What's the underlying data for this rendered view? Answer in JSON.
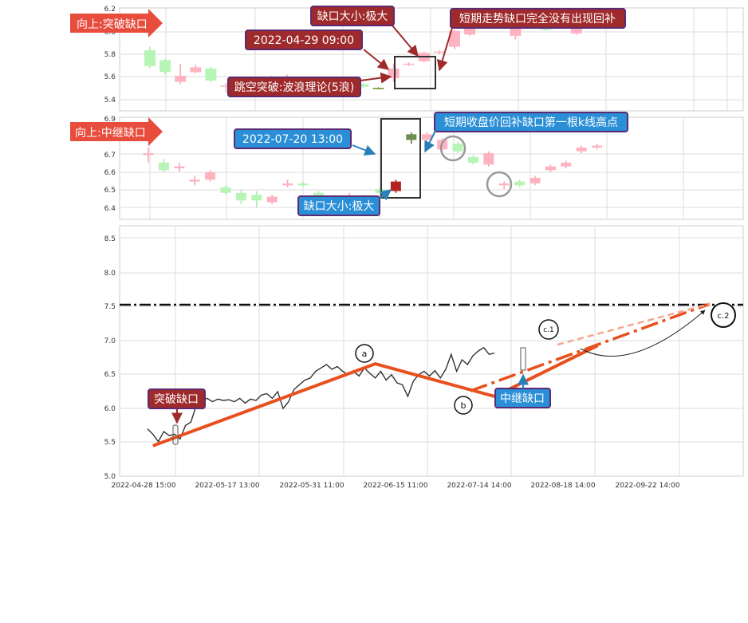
{
  "chart_data": [
    {
      "type": "candlestick",
      "panel": "top",
      "ylim": [
        5.35,
        6.2
      ],
      "yticks": [
        "6.2",
        "6.0",
        "5.8",
        "5.6",
        "5.4"
      ],
      "candles": [
        [
          5.72,
          5.85,
          5.7,
          5.88,
          "up"
        ],
        [
          5.67,
          5.77,
          5.65,
          5.78,
          "up"
        ],
        [
          5.64,
          5.59,
          5.57,
          5.74,
          "down"
        ],
        [
          5.67,
          5.71,
          5.66,
          5.73,
          "down"
        ],
        [
          5.6,
          5.7,
          5.59,
          5.71,
          "up"
        ],
        [
          5.55,
          5.56,
          5.5,
          5.58,
          "down"
        ],
        [
          5.53,
          5.54,
          5.49,
          5.56,
          "down"
        ],
        [
          5.58,
          5.56,
          5.55,
          5.6,
          "up"
        ],
        [
          5.6,
          5.62,
          5.59,
          5.64,
          "down"
        ],
        [
          5.62,
          5.63,
          5.61,
          5.65,
          "down"
        ],
        [
          5.61,
          5.59,
          5.57,
          5.62,
          "up"
        ],
        [
          5.6,
          5.61,
          5.59,
          5.62,
          "down"
        ],
        [
          5.57,
          5.56,
          5.55,
          5.58,
          "up"
        ],
        [
          5.54,
          5.58,
          5.53,
          5.59,
          "up"
        ],
        [
          5.55,
          5.57,
          5.54,
          5.58,
          "up"
        ],
        [
          5.54,
          5.54,
          5.53,
          5.545,
          "flat"
        ],
        [
          5.62,
          5.7,
          5.59,
          5.74,
          "down"
        ],
        [
          5.73,
          5.74,
          5.72,
          5.75,
          "down"
        ],
        [
          5.76,
          5.83,
          5.75,
          5.84,
          "down"
        ],
        [
          5.83,
          5.84,
          5.82,
          5.85,
          "down"
        ],
        [
          5.88,
          6.01,
          5.86,
          6.02,
          "down"
        ],
        [
          5.98,
          6.05,
          5.97,
          6.06,
          "down"
        ],
        [
          6.08,
          6.1,
          6.05,
          6.12,
          "down"
        ],
        [
          6.11,
          6.12,
          6.1,
          6.13,
          "down"
        ],
        [
          6.04,
          5.97,
          5.94,
          6.07,
          "down"
        ],
        [
          6.05,
          6.07,
          6.04,
          6.08,
          "down"
        ],
        [
          6.02,
          6.04,
          6.01,
          6.05,
          "up"
        ],
        [
          6.04,
          6.05,
          6.03,
          6.06,
          "up"
        ],
        [
          6.06,
          5.99,
          5.98,
          6.07,
          "down"
        ]
      ],
      "labels": {
        "pattern": "向上:突破缺口",
        "gap_size": "缺口大小:极大",
        "datetime": "2022-04-29 09:00",
        "no_fill": "短期走势缺口完全没有出现回补",
        "breakout": "跳空突破:波浪理论(5浪)"
      }
    },
    {
      "type": "candlestick",
      "panel": "middle",
      "ylim": [
        6.36,
        6.9
      ],
      "yticks": [
        "6.9",
        "6.7",
        "6.6",
        "6.5",
        "6.4"
      ],
      "candles": [
        [
          6.7,
          6.71,
          6.66,
          6.74,
          "down"
        ],
        [
          6.62,
          6.66,
          6.61,
          6.68,
          "up"
        ],
        [
          6.64,
          6.63,
          6.61,
          6.66,
          "down"
        ],
        [
          6.56,
          6.57,
          6.54,
          6.59,
          "down"
        ],
        [
          6.57,
          6.61,
          6.56,
          6.62,
          "down"
        ],
        [
          6.5,
          6.53,
          6.49,
          6.54,
          "up"
        ],
        [
          6.46,
          6.5,
          6.44,
          6.52,
          "up"
        ],
        [
          6.46,
          6.49,
          6.42,
          6.51,
          "up"
        ],
        [
          6.45,
          6.48,
          6.44,
          6.49,
          "down"
        ],
        [
          6.54,
          6.55,
          6.53,
          6.57,
          "down"
        ],
        [
          6.54,
          6.55,
          6.53,
          6.56,
          "up"
        ],
        [
          6.47,
          6.5,
          6.46,
          6.51,
          "up"
        ],
        [
          6.47,
          6.48,
          6.46,
          6.49,
          "down"
        ],
        [
          6.47,
          6.48,
          6.46,
          6.5,
          "down"
        ],
        [
          6.48,
          6.47,
          6.46,
          6.49,
          "down"
        ],
        [
          6.5,
          6.52,
          6.49,
          6.53,
          "up"
        ],
        [
          6.51,
          6.56,
          6.5,
          6.57,
          "down_dark"
        ],
        [
          6.81,
          6.78,
          6.76,
          6.82,
          "up_dark"
        ],
        [
          6.78,
          6.81,
          6.77,
          6.82,
          "down"
        ],
        [
          6.73,
          6.78,
          6.72,
          6.79,
          "down"
        ],
        [
          6.72,
          6.76,
          6.71,
          6.77,
          "up"
        ],
        [
          6.66,
          6.69,
          6.65,
          6.7,
          "up"
        ],
        [
          6.65,
          6.71,
          6.64,
          6.72,
          "down"
        ],
        [
          6.54,
          6.55,
          6.52,
          6.56,
          "down"
        ],
        [
          6.54,
          6.56,
          6.53,
          6.57,
          "up"
        ],
        [
          6.55,
          6.58,
          6.54,
          6.59,
          "down"
        ],
        [
          6.62,
          6.64,
          6.61,
          6.65,
          "down"
        ],
        [
          6.64,
          6.66,
          6.63,
          6.67,
          "down"
        ],
        [
          6.72,
          6.74,
          6.71,
          6.75,
          "down"
        ],
        [
          6.74,
          6.75,
          6.73,
          6.76,
          "down"
        ]
      ],
      "labels": {
        "pattern": "向上:中继缺口",
        "datetime": "2022-07-20 13:00",
        "pullback": "短期收盘价回补缺口第一根k线高点",
        "gap_size": "缺口大小:极大"
      }
    },
    {
      "type": "line",
      "panel": "bottom",
      "ylim": [
        5.0,
        8.7
      ],
      "yticks": [
        "8.5",
        "8.0",
        "7.5",
        "7.0",
        "6.5",
        "6.0",
        "5.5",
        "5.0"
      ],
      "xticks": [
        "2022-04-28 15:00",
        "2022-05-17 13:00",
        "2022-05-31 11:00",
        "2022-06-15 11:00",
        "2022-07-14 14:00",
        "2022-08-18 14:00",
        "2022-09-22 14:00"
      ],
      "price_series": [
        [
          0,
          5.7
        ],
        [
          1,
          5.62
        ],
        [
          2,
          5.51
        ],
        [
          3,
          5.66
        ],
        [
          4,
          5.6
        ],
        [
          5,
          5.62
        ],
        [
          6,
          5.55
        ],
        [
          7,
          5.75
        ],
        [
          8,
          5.8
        ],
        [
          9,
          6.05
        ],
        [
          10,
          6.12
        ],
        [
          11,
          6.15
        ],
        [
          12,
          6.1
        ],
        [
          13,
          6.14
        ],
        [
          14,
          6.12
        ],
        [
          15,
          6.13
        ],
        [
          16,
          6.1
        ],
        [
          17,
          6.15
        ],
        [
          18,
          6.08
        ],
        [
          19,
          6.14
        ],
        [
          20,
          6.12
        ],
        [
          21,
          6.2
        ],
        [
          22,
          6.22
        ],
        [
          23,
          6.15
        ],
        [
          24,
          6.25
        ],
        [
          25,
          6.0
        ],
        [
          26,
          6.1
        ],
        [
          27,
          6.28
        ],
        [
          28,
          6.35
        ],
        [
          29,
          6.42
        ],
        [
          30,
          6.45
        ],
        [
          31,
          6.55
        ],
        [
          32,
          6.6
        ],
        [
          33,
          6.65
        ],
        [
          34,
          6.58
        ],
        [
          35,
          6.62
        ],
        [
          36,
          6.55
        ],
        [
          37,
          6.5
        ],
        [
          38,
          6.55
        ],
        [
          39,
          6.48
        ],
        [
          40,
          6.6
        ],
        [
          41,
          6.52
        ],
        [
          42,
          6.45
        ],
        [
          43,
          6.55
        ],
        [
          44,
          6.42
        ],
        [
          45,
          6.5
        ],
        [
          46,
          6.38
        ],
        [
          47,
          6.35
        ],
        [
          48,
          6.18
        ],
        [
          49,
          6.4
        ],
        [
          50,
          6.5
        ],
        [
          51,
          6.55
        ],
        [
          52,
          6.48
        ],
        [
          53,
          6.56
        ],
        [
          54,
          6.45
        ],
        [
          55,
          6.58
        ],
        [
          56,
          6.8
        ],
        [
          57,
          6.55
        ],
        [
          58,
          6.72
        ],
        [
          59,
          6.65
        ],
        [
          60,
          6.78
        ],
        [
          61,
          6.85
        ],
        [
          62,
          6.9
        ],
        [
          63,
          6.8
        ],
        [
          64,
          6.82
        ]
      ],
      "wave_path": [
        [
          1,
          5.45
        ],
        [
          42,
          6.66
        ],
        [
          64,
          6.18
        ],
        [
          83,
          6.93
        ]
      ],
      "wave_labels": [
        "a",
        "b",
        "c.1",
        "c.2"
      ],
      "target_level": 7.53,
      "labels": {
        "breakout_gap": "突破缺口",
        "relay_gap": "中继缺口"
      }
    }
  ]
}
